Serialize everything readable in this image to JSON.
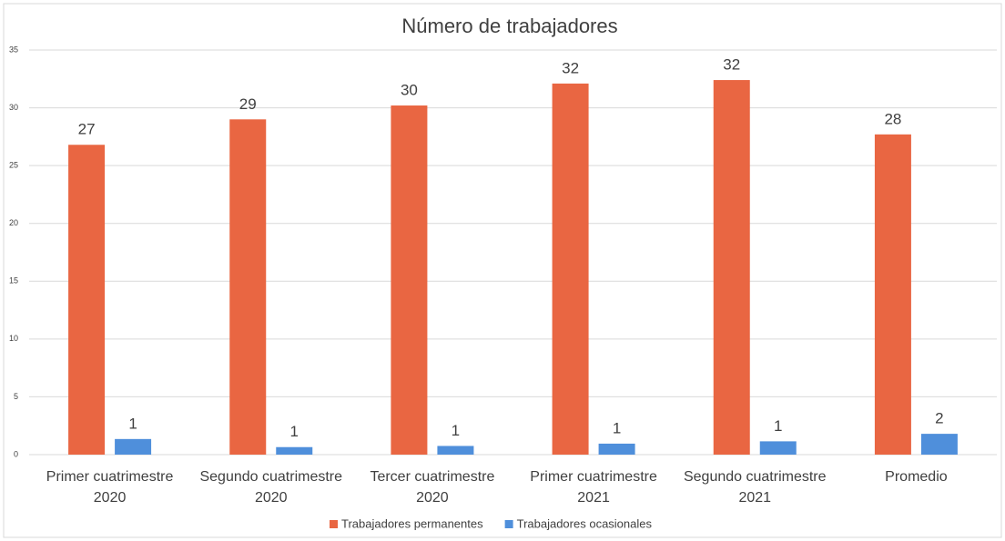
{
  "chart_data": {
    "type": "bar",
    "title": "Número de trabajadores",
    "categories": [
      "Primer cuatrimestre 2020",
      "Segundo cuatrimestre 2020",
      "Tercer cuatrimestre 2020",
      "Primer cuatrimestre 2021",
      "Segundo cuatrimestre 2021",
      "Promedio"
    ],
    "series": [
      {
        "name": "Trabajadores permanentes",
        "color": "#e96642",
        "values": [
          26.8,
          29,
          30.2,
          32.1,
          32.4,
          27.7
        ],
        "value_labels": [
          "27",
          "29",
          "30",
          "32",
          "32",
          "28"
        ]
      },
      {
        "name": "Trabajadores ocasionales",
        "color": "#4f8fdb",
        "values": [
          1.35,
          0.65,
          0.75,
          0.95,
          1.15,
          1.8
        ],
        "value_labels": [
          "1",
          "1",
          "1",
          "1",
          "1",
          "2"
        ]
      }
    ],
    "ylim": [
      0,
      35
    ],
    "yticks": [
      0,
      5,
      10,
      15,
      20,
      25,
      30,
      35
    ],
    "grid": true,
    "legend": "bottom"
  }
}
